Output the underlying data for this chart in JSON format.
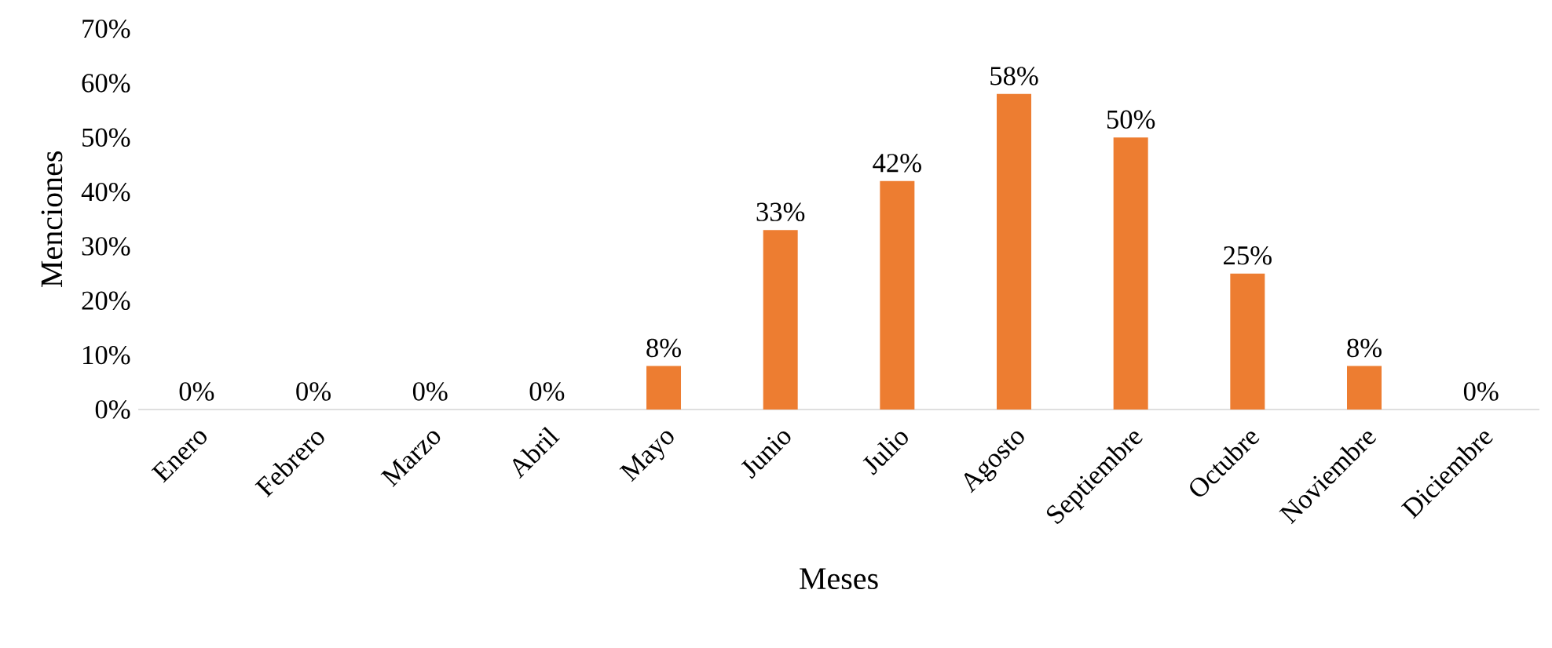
{
  "chart_data": {
    "type": "bar",
    "xlabel": "Meses",
    "ylabel": "Menciones",
    "categories": [
      "Enero",
      "Febrero",
      "Marzo",
      "Abril",
      "Mayo",
      "Junio",
      "Julio",
      "Agosto",
      "Septiembre",
      "Octubre",
      "Noviembre",
      "Diciembre"
    ],
    "values": [
      0,
      0,
      0,
      0,
      8,
      33,
      42,
      58,
      50,
      25,
      8,
      0
    ],
    "value_labels": [
      "0%",
      "0%",
      "0%",
      "0%",
      "8%",
      "33%",
      "42%",
      "58%",
      "50%",
      "25%",
      "8%",
      "0%"
    ],
    "color": "#ed7d31",
    "ylim": [
      0,
      70
    ],
    "yticks": [
      {
        "value": 0,
        "label": "0%"
      },
      {
        "value": 10,
        "label": "10%"
      },
      {
        "value": 20,
        "label": "20%"
      },
      {
        "value": 30,
        "label": "30%"
      },
      {
        "value": 40,
        "label": "40%"
      },
      {
        "value": 50,
        "label": "50%"
      },
      {
        "value": 60,
        "label": "60%"
      },
      {
        "value": 70,
        "label": "70%"
      }
    ]
  }
}
